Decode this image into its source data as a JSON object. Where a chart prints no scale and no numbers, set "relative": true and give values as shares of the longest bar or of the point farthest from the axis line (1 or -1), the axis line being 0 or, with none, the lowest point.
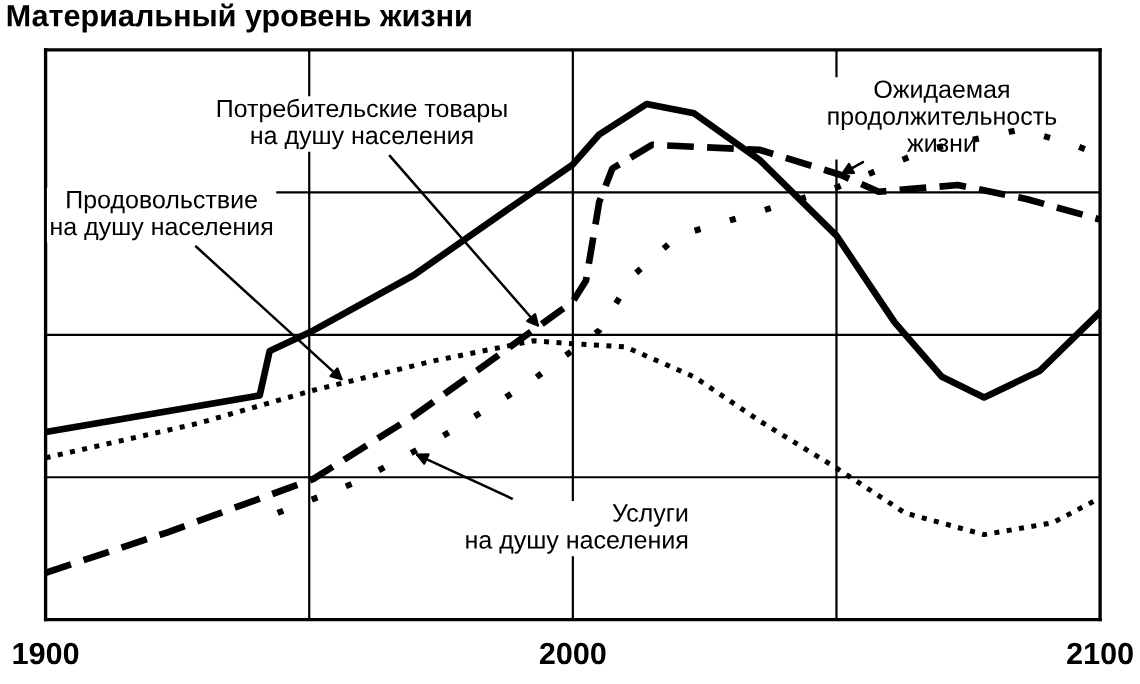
{
  "chart_data": {
    "type": "line",
    "title": "Материальный уровень жизни",
    "relative": true,
    "grid": true,
    "legend": false,
    "marker": "none",
    "xlim": [
      1900,
      2100
    ],
    "xticks": [
      1900,
      {
        "value": 1950,
        "label": null
      },
      2000,
      {
        "value": 2050,
        "label": null
      },
      2100
    ],
    "tick_labels": "x",
    "series": [
      {
        "color": "#000000",
        "line_style": "solid",
        "x": [
          1900,
          1940.6,
          1942.5,
          1950.8,
          1969.8,
          1986,
          2000,
          2005,
          2014,
          2023,
          2035.5,
          2050,
          2061,
          2070,
          2078,
          2088.6,
          2100
        ],
        "values": [
          0.364,
          0.435,
          0.521,
          0.561,
          0.668,
          0.784,
          0.883,
          0.941,
          1,
          0.982,
          0.891,
          0.745,
          0.577,
          0.471,
          0.431,
          0.483,
          0.597
        ]
      },
      {
        "color": "#000000",
        "line_style": "dotted",
        "x": [
          1900,
          1929,
          1950.8,
          1973.6,
          1992.6,
          1997.5,
          2010,
          2023,
          2035.5,
          2050,
          2063,
          2078,
          2091,
          2100
        ],
        "values": [
          0.314,
          0.381,
          0.445,
          0.502,
          0.541,
          0.537,
          0.529,
          0.471,
          0.385,
          0.294,
          0.207,
          0.165,
          0.188,
          0.236
        ]
      },
      {
        "color": "#000000",
        "line_style": "dotted",
        "x": [
          1944,
          1959,
          1975,
          1991.5,
          2005,
          2011.5,
          2020,
          2033,
          2049.5,
          2067,
          2085,
          2095,
          2100
        ],
        "values": [
          0.207,
          0.267,
          0.354,
          0.458,
          0.561,
          0.668,
          0.745,
          0.784,
          0.836,
          0.911,
          0.951,
          0.921,
          0.901
        ]
      },
      {
        "color": "#000000",
        "line_style": "dashed",
        "x": [
          1900,
          1923,
          1950.8,
          1969.8,
          1987,
          2000,
          2002.5,
          2005,
          2007.5,
          2015,
          2035.5,
          2050.7,
          2058,
          2073,
          2086,
          2100
        ],
        "values": [
          0.091,
          0.169,
          0.273,
          0.395,
          0.521,
          0.617,
          0.658,
          0.81,
          0.875,
          0.921,
          0.911,
          0.863,
          0.83,
          0.843,
          0.816,
          0.776
        ]
      }
    ],
    "annotations": [
      {
        "text": "Потребительские товары\nна душу населения",
        "x": 1993.7,
        "y": 0.567
      },
      {
        "text": "Продовольствие\nна душу населения",
        "x": 1956.5,
        "y": 0.463
      },
      {
        "text": "Услуги\nна душу населения",
        "x": 1970,
        "y": 0.322
      },
      {
        "text": "Ожидаемая\nпродолжительность\nжизни",
        "x": 2050.7,
        "y": 0.863
      }
    ]
  }
}
